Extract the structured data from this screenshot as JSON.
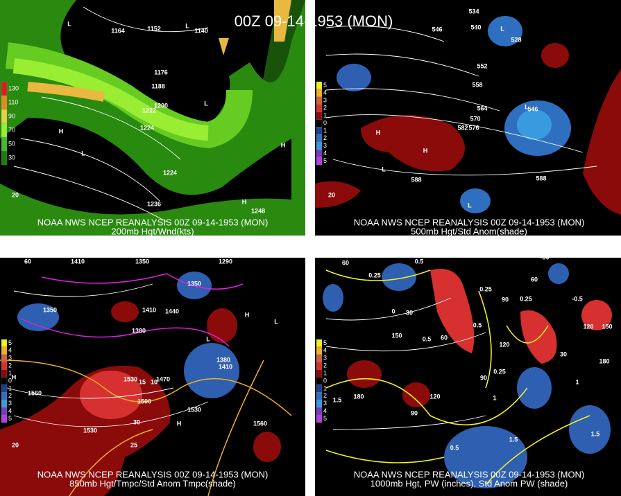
{
  "title": "00Z 09-14-1953 (MON)",
  "panels": [
    {
      "caption": "NOAA NWS NCEP REANALYSIS 00Z 09-14-1953 (MON)",
      "subtitle": "200mb Hgt/Wnd(kts)",
      "legend": [
        "130",
        "110",
        "90",
        "70",
        "50",
        "30"
      ],
      "labels": [
        "1164",
        "1152",
        "1140",
        "1176",
        "1188",
        "1200",
        "1212",
        "1224",
        "1224",
        "1236",
        "1248",
        "H",
        "L",
        "L",
        "L",
        "L",
        "H",
        "H",
        "20"
      ]
    },
    {
      "caption": "NOAA NWS NCEP REANALYSIS 00Z 09-14-1953 (MON)",
      "subtitle": "500mb Hgt/Std Anom(shade)",
      "legend": [
        "5",
        "4",
        "3",
        "2",
        "1",
        "0",
        "1",
        "2",
        "3",
        "4",
        "5"
      ],
      "labels": [
        "534",
        "540",
        "546",
        "552",
        "558",
        "564",
        "570",
        "576",
        "582",
        "588",
        "588",
        "528",
        "546",
        "H",
        "H",
        "L",
        "L",
        "L",
        "L",
        "20"
      ]
    },
    {
      "caption": "NOAA NWS NCEP REANALYSIS 00Z 09-14-1953 (MON)",
      "subtitle": "850mb Hgt/Tmpc/Std Anom Tmpc(shade)",
      "legend": [
        "5",
        "4",
        "3",
        "2",
        "1",
        "0",
        "1",
        "2",
        "3",
        "4",
        "5"
      ],
      "labels": [
        "60",
        "1410",
        "1350",
        "1290",
        "1350",
        "1350",
        "1410",
        "1440",
        "1380",
        "1530",
        "1500",
        "1470",
        "1560",
        "1530",
        "1530",
        "1560",
        "15",
        "10",
        "30",
        "25",
        "1380",
        "1410",
        "20",
        "H",
        "H",
        "L",
        "H",
        "L"
      ]
    },
    {
      "caption": "NOAA NWS NCEP REANALYSIS 00Z 09-14-1953 (MON)",
      "subtitle": "1000mb Hgt, PW (inches), Std Anom PW (shade)",
      "legend": [
        "5",
        "4",
        "3",
        "2",
        "1",
        "0",
        "1",
        "2",
        "3",
        "4",
        "5"
      ],
      "labels": [
        "60",
        "0.5",
        "-30",
        "0.25",
        "0.25",
        "0.25",
        "-0.5",
        "30",
        "0",
        "60",
        "0.5",
        "0.5",
        "90",
        "150",
        "120",
        "120",
        "150",
        "180",
        "90",
        "120",
        "90",
        "180",
        "0.5",
        "1.5",
        "1.5",
        "1.5",
        "0.25",
        "1",
        "1",
        "60",
        "30"
      ]
    }
  ]
}
